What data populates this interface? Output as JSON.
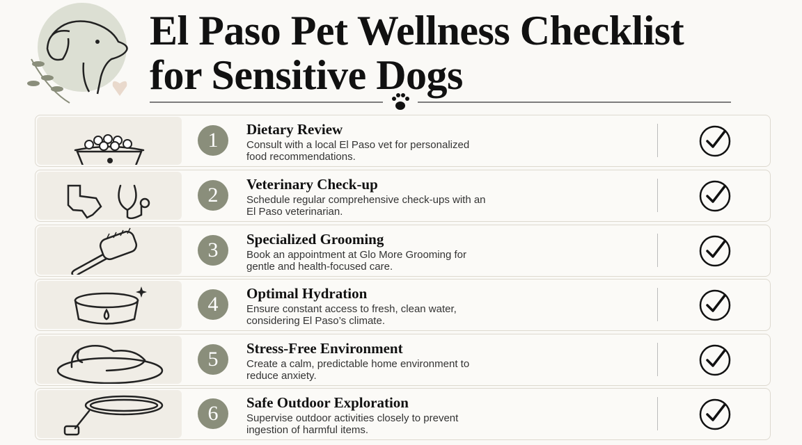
{
  "header": {
    "title": [
      "El Paso Pet Wellness Checklist",
      "for Sensitive Dogs"
    ]
  },
  "items": [
    {
      "number": "1",
      "heading": "Dietary Review",
      "description": "Consult with a local El Paso vet for personalized food recommendations."
    },
    {
      "number": "2",
      "heading": "Veterinary Check-up",
      "description": "Schedule regular comprehensive check-ups with an El Paso veterinarian."
    },
    {
      "number": "3",
      "heading": "Specialized Grooming",
      "description": "Book an appointment at Glo More Grooming for gentle and health-focused care."
    },
    {
      "number": "4",
      "heading": "Optimal Hydration",
      "description": "Ensure constant access to fresh, clean water, considering El Paso’s climate."
    },
    {
      "number": "5",
      "heading": "Stress-Free Environment",
      "description": "Create a calm, predictable home environment to reduce anxiety."
    },
    {
      "number": "6",
      "heading": "Safe Outdoor Exploration",
      "description": "Supervise outdoor activities closely to prevent ingestion of harmful items."
    }
  ]
}
